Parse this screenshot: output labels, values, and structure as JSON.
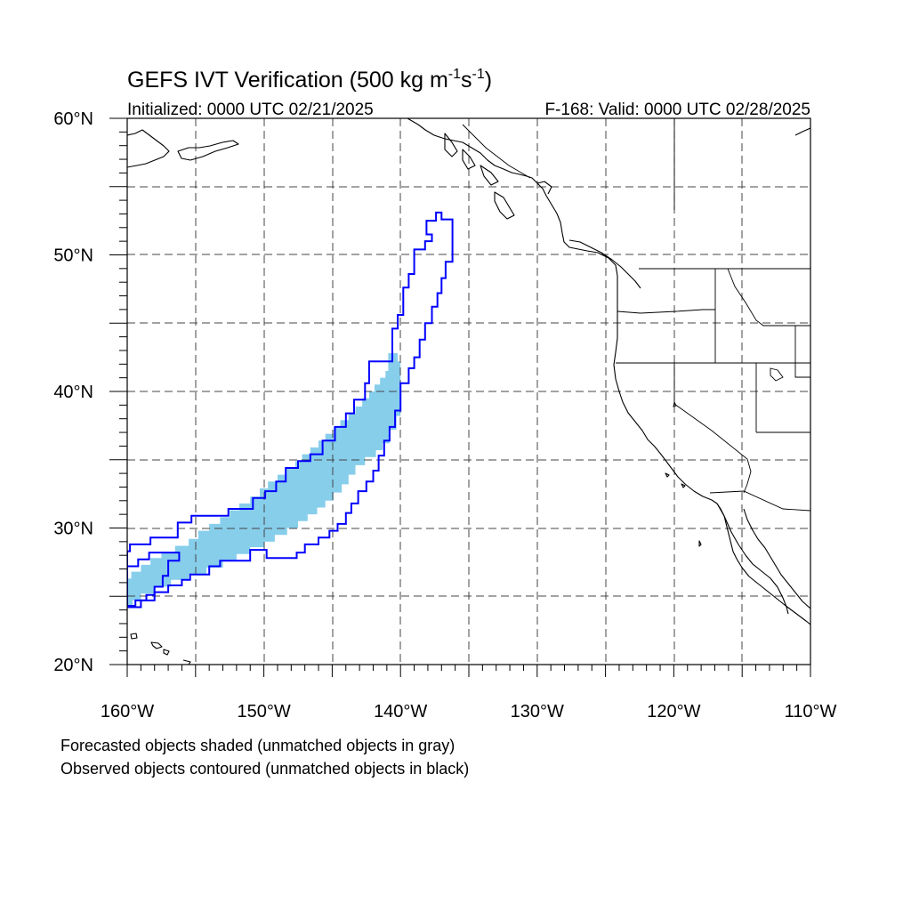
{
  "title": {
    "main": "GEFS IVT Verification (500 kg m",
    "exp1": "-1",
    "mid": "s",
    "exp2": "-1",
    "close": ")"
  },
  "subtitle_left": "Initialized: 0000 UTC 02/21/2025",
  "subtitle_right": "F-168: Valid: 0000 UTC 02/28/2025",
  "map": {
    "lon_range": [
      -160,
      -110
    ],
    "lat_range": [
      20,
      60
    ],
    "grid_style": "dashed",
    "lat_ticks": [
      {
        "value": 20,
        "label": "20°N"
      },
      {
        "value": 30,
        "label": "30°N"
      },
      {
        "value": 40,
        "label": "40°N"
      },
      {
        "value": 50,
        "label": "50°N"
      },
      {
        "value": 60,
        "label": "60°N"
      }
    ],
    "lon_ticks": [
      {
        "value": -160,
        "label": "160°W"
      },
      {
        "value": -150,
        "label": "150°W"
      },
      {
        "value": -140,
        "label": "140°W"
      },
      {
        "value": -130,
        "label": "130°W"
      },
      {
        "value": -120,
        "label": "120°W"
      },
      {
        "value": -110,
        "label": "110°W"
      }
    ]
  },
  "objects": {
    "forecast_fill_color": "#87ceeb",
    "observed_contour_color": "#0000ff",
    "forecast_object": {
      "upper_edge": [
        [
          -160,
          26.3
        ],
        [
          -159.7,
          26.3
        ],
        [
          -159.7,
          26.8
        ],
        [
          -159,
          26.8
        ],
        [
          -159,
          27.3
        ],
        [
          -158.3,
          27.3
        ],
        [
          -158.3,
          27.8
        ],
        [
          -157.5,
          27.8
        ],
        [
          -157.5,
          28.2
        ],
        [
          -156.5,
          28.2
        ],
        [
          -156.5,
          28.7
        ],
        [
          -155.5,
          28.7
        ],
        [
          -155.5,
          29.2
        ],
        [
          -154.8,
          29.2
        ],
        [
          -154.8,
          29.8
        ],
        [
          -154,
          29.8
        ],
        [
          -154,
          30.3
        ],
        [
          -153.2,
          30.3
        ],
        [
          -153.2,
          30.8
        ],
        [
          -152.5,
          30.8
        ],
        [
          -152.5,
          31.3
        ],
        [
          -151.8,
          31.3
        ],
        [
          -151.8,
          31.8
        ],
        [
          -151,
          31.8
        ],
        [
          -151,
          32.3
        ],
        [
          -150.3,
          32.3
        ],
        [
          -150.3,
          32.9
        ],
        [
          -149.7,
          32.9
        ],
        [
          -149.7,
          33.4
        ],
        [
          -149,
          33.4
        ],
        [
          -149,
          33.9
        ],
        [
          -148.4,
          33.9
        ],
        [
          -148.4,
          34.4
        ],
        [
          -147.7,
          34.4
        ],
        [
          -147.7,
          34.9
        ],
        [
          -147.2,
          34.9
        ],
        [
          -147.2,
          35.4
        ],
        [
          -146.6,
          35.4
        ],
        [
          -146.6,
          35.9
        ],
        [
          -146,
          35.9
        ],
        [
          -146,
          36.4
        ],
        [
          -145.5,
          36.4
        ],
        [
          -145.5,
          36.9
        ],
        [
          -144.9,
          36.9
        ],
        [
          -144.9,
          37.4
        ],
        [
          -144.4,
          37.4
        ],
        [
          -144.4,
          37.9
        ],
        [
          -143.8,
          37.9
        ],
        [
          -143.8,
          38.4
        ],
        [
          -143.3,
          38.4
        ],
        [
          -143.3,
          38.9
        ],
        [
          -142.8,
          38.9
        ],
        [
          -142.8,
          39.5
        ],
        [
          -142.3,
          39.5
        ],
        [
          -142.3,
          40
        ],
        [
          -141.9,
          40
        ],
        [
          -141.9,
          40.5
        ],
        [
          -141.5,
          40.5
        ],
        [
          -141.5,
          41
        ],
        [
          -141.1,
          41
        ],
        [
          -141.1,
          41.5
        ],
        [
          -140.9,
          41.5
        ],
        [
          -140.9,
          42.8
        ]
      ],
      "lower_edge": [
        [
          -140.2,
          42.8
        ],
        [
          -140.2,
          42.2
        ],
        [
          -140,
          42.2
        ],
        [
          -140,
          38.2
        ],
        [
          -140.3,
          38.2
        ],
        [
          -140.3,
          37.2
        ],
        [
          -140.8,
          37.2
        ],
        [
          -140.8,
          36.2
        ],
        [
          -141.3,
          36.2
        ],
        [
          -141.3,
          35.7
        ],
        [
          -141.8,
          35.7
        ],
        [
          -141.8,
          35.2
        ],
        [
          -142.6,
          35.2
        ],
        [
          -142.6,
          34.6
        ],
        [
          -143.3,
          34.6
        ],
        [
          -143.3,
          33.9
        ],
        [
          -143.8,
          33.9
        ],
        [
          -143.8,
          33.2
        ],
        [
          -144.3,
          33.2
        ],
        [
          -144.3,
          32.6
        ],
        [
          -144.9,
          32.6
        ],
        [
          -144.9,
          32
        ],
        [
          -145.5,
          32
        ],
        [
          -145.5,
          31.5
        ],
        [
          -146.1,
          31.5
        ],
        [
          -146.1,
          31
        ],
        [
          -146.8,
          31
        ],
        [
          -146.8,
          30.5
        ],
        [
          -147.5,
          30.5
        ],
        [
          -147.5,
          30
        ],
        [
          -148.3,
          30
        ],
        [
          -148.3,
          29.5
        ],
        [
          -149.2,
          29.5
        ],
        [
          -149.2,
          29
        ],
        [
          -150,
          29
        ],
        [
          -150,
          28.6
        ],
        [
          -151,
          28.6
        ],
        [
          -151,
          28.1
        ],
        [
          -152,
          28.1
        ],
        [
          -152,
          27.6
        ],
        [
          -153,
          27.6
        ],
        [
          -153,
          27.1
        ],
        [
          -154.2,
          27.1
        ],
        [
          -154.2,
          26.6
        ],
        [
          -155.5,
          26.6
        ],
        [
          -155.5,
          26.2
        ],
        [
          -156.8,
          26.2
        ],
        [
          -156.8,
          25.7
        ],
        [
          -158,
          25.7
        ],
        [
          -158,
          25.2
        ],
        [
          -159,
          25.2
        ],
        [
          -159,
          24.7
        ],
        [
          -159.6,
          24.7
        ],
        [
          -159.6,
          24.2
        ],
        [
          -160,
          24.2
        ]
      ]
    },
    "observed_outer": [
      [
        -160,
        28.3
      ],
      [
        -159.8,
        28.3
      ],
      [
        -159.8,
        28.8
      ],
      [
        -158.3,
        28.8
      ],
      [
        -158.3,
        29.3
      ],
      [
        -156.3,
        29.3
      ],
      [
        -156.3,
        30.4
      ],
      [
        -155.3,
        30.4
      ],
      [
        -155.3,
        30.9
      ],
      [
        -152.6,
        30.9
      ],
      [
        -152.6,
        31.4
      ],
      [
        -150.8,
        31.4
      ],
      [
        -150.8,
        32.2
      ],
      [
        -149.9,
        32.2
      ],
      [
        -149.9,
        32.7
      ],
      [
        -149.1,
        32.7
      ],
      [
        -149.1,
        33.4
      ],
      [
        -148.4,
        33.4
      ],
      [
        -148.4,
        34.4
      ],
      [
        -147.5,
        34.4
      ],
      [
        -147.5,
        34.9
      ],
      [
        -146.6,
        34.9
      ],
      [
        -146.6,
        35.4
      ],
      [
        -145.7,
        35.4
      ],
      [
        -145.7,
        36.4
      ],
      [
        -144.8,
        36.4
      ],
      [
        -144.8,
        37.4
      ],
      [
        -144.0,
        37.4
      ],
      [
        -144.0,
        38.4
      ],
      [
        -143.4,
        38.4
      ],
      [
        -143.4,
        39.4
      ],
      [
        -142.6,
        39.4
      ],
      [
        -142.6,
        40.6
      ],
      [
        -142.3,
        40.6
      ],
      [
        -142.3,
        42.2
      ],
      [
        -140.6,
        42.2
      ],
      [
        -140.6,
        44.6
      ],
      [
        -140.2,
        44.6
      ],
      [
        -140.2,
        45.6
      ],
      [
        -139.8,
        45.6
      ],
      [
        -139.8,
        47.6
      ],
      [
        -139.4,
        47.6
      ],
      [
        -139.4,
        48.6
      ],
      [
        -139.0,
        48.6
      ],
      [
        -139.0,
        50.4
      ],
      [
        -138.2,
        50.4
      ],
      [
        -138.2,
        51.0
      ],
      [
        -137.7,
        51.0
      ],
      [
        -137.7,
        51.5
      ],
      [
        -138.1,
        51.5
      ],
      [
        -138.1,
        52.5
      ],
      [
        -137.4,
        52.5
      ],
      [
        -137.4,
        53.1
      ],
      [
        -137.0,
        53.1
      ],
      [
        -137.0,
        52.6
      ],
      [
        -136.2,
        52.6
      ],
      [
        -136.2,
        49.5
      ],
      [
        -136.7,
        49.5
      ],
      [
        -136.7,
        48.3
      ],
      [
        -137.0,
        48.3
      ],
      [
        -137.0,
        47.2
      ],
      [
        -137.3,
        47.2
      ],
      [
        -137.3,
        46.2
      ],
      [
        -137.7,
        46.2
      ],
      [
        -137.7,
        45.0
      ],
      [
        -138.2,
        45.0
      ],
      [
        -138.2,
        43.8
      ],
      [
        -138.6,
        43.8
      ],
      [
        -138.6,
        42.5
      ],
      [
        -139.0,
        42.5
      ],
      [
        -139.0,
        41.7
      ],
      [
        -139.4,
        41.7
      ],
      [
        -139.4,
        40.6
      ],
      [
        -140.0,
        40.6
      ],
      [
        -140.0,
        38.6
      ],
      [
        -140.4,
        38.6
      ],
      [
        -140.4,
        37.4
      ],
      [
        -140.8,
        37.4
      ],
      [
        -140.8,
        36.4
      ],
      [
        -141.2,
        36.4
      ],
      [
        -141.2,
        35.3
      ],
      [
        -141.6,
        35.3
      ],
      [
        -141.6,
        34.2
      ],
      [
        -142.0,
        34.2
      ],
      [
        -142.0,
        33.4
      ],
      [
        -142.5,
        33.4
      ],
      [
        -142.5,
        32.7
      ],
      [
        -143.1,
        32.7
      ],
      [
        -143.1,
        31.8
      ],
      [
        -143.6,
        31.8
      ],
      [
        -143.6,
        31.1
      ],
      [
        -144.0,
        31.1
      ],
      [
        -144.0,
        30.3
      ],
      [
        -144.6,
        30.3
      ],
      [
        -144.6,
        29.8
      ],
      [
        -145.2,
        29.8
      ],
      [
        -145.2,
        29.3
      ],
      [
        -146.0,
        29.3
      ],
      [
        -146.0,
        28.8
      ],
      [
        -147.0,
        28.8
      ],
      [
        -147.0,
        28.2
      ],
      [
        -147.6,
        28.2
      ],
      [
        -147.6,
        27.8
      ],
      [
        -149.8,
        27.8
      ],
      [
        -149.8,
        28.4
      ],
      [
        -151.0,
        28.4
      ],
      [
        -151.0,
        27.6
      ],
      [
        -153.2,
        27.6
      ],
      [
        -153.2,
        27.2
      ],
      [
        -154.0,
        27.2
      ],
      [
        -154.0,
        26.6
      ],
      [
        -155.4,
        26.6
      ],
      [
        -155.4,
        26.2
      ],
      [
        -156.0,
        26.2
      ],
      [
        -156.0,
        25.8
      ],
      [
        -157.0,
        25.8
      ],
      [
        -157.0,
        25.3
      ],
      [
        -158.0,
        25.3
      ],
      [
        -158.0,
        24.7
      ],
      [
        -159.0,
        24.7
      ],
      [
        -159.0,
        24.2
      ],
      [
        -160,
        24.2
      ]
    ],
    "observed_inner": [
      [
        -160,
        27.2
      ],
      [
        -159.2,
        27.2
      ],
      [
        -159.2,
        27.7
      ],
      [
        -158.4,
        27.7
      ],
      [
        -158.4,
        28.2
      ],
      [
        -156.2,
        28.2
      ],
      [
        -156.2,
        27.6
      ],
      [
        -157.0,
        27.6
      ],
      [
        -157.0,
        26.5
      ],
      [
        -157.4,
        26.5
      ],
      [
        -157.4,
        25.7
      ],
      [
        -158.0,
        25.7
      ],
      [
        -158.0,
        25.1
      ],
      [
        -158.6,
        25.1
      ],
      [
        -158.6,
        24.7
      ],
      [
        -159.4,
        24.7
      ],
      [
        -159.4,
        24.3
      ],
      [
        -160,
        24.3
      ]
    ]
  },
  "legend_note_1": "Forecasted objects shaded (unmatched objects in gray)",
  "legend_note_2": "Observed objects contoured (unmatched objects in black)"
}
